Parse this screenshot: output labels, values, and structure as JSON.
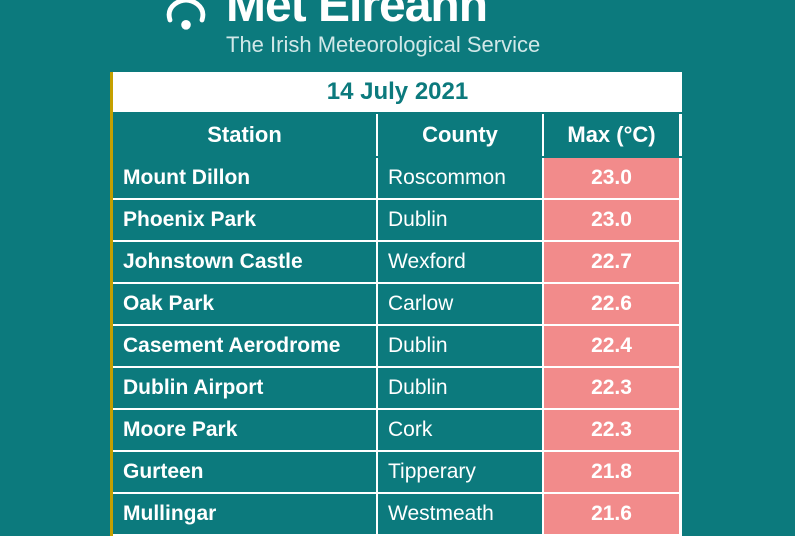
{
  "brand": {
    "title": "Met Éireann",
    "subtitle": "The Irish Meteorological Service"
  },
  "table": {
    "date": "14 July 2021",
    "columns": {
      "station": "Station",
      "county": "County",
      "max": "Max (°C)"
    },
    "rows": [
      {
        "station": "Mount Dillon",
        "county": "Roscommon",
        "max": "23.0"
      },
      {
        "station": "Phoenix Park",
        "county": "Dublin",
        "max": "23.0"
      },
      {
        "station": "Johnstown Castle",
        "county": "Wexford",
        "max": "22.7"
      },
      {
        "station": "Oak Park",
        "county": "Carlow",
        "max": "22.6"
      },
      {
        "station": "Casement Aerodrome",
        "county": "Dublin",
        "max": "22.4"
      },
      {
        "station": "Dublin Airport",
        "county": "Dublin",
        "max": "22.3"
      },
      {
        "station": "Moore Park",
        "county": "Cork",
        "max": "22.3"
      },
      {
        "station": "Gurteen",
        "county": "Tipperary",
        "max": "21.8"
      },
      {
        "station": "Mullingar",
        "county": "Westmeath",
        "max": "21.6"
      }
    ],
    "colors": {
      "background": "#0c7a7d",
      "accent_border": "#c4a000",
      "max_cell_bg": "#f28b8b",
      "text_light": "#ffffff",
      "text_teal": "#0c7a7d"
    }
  }
}
